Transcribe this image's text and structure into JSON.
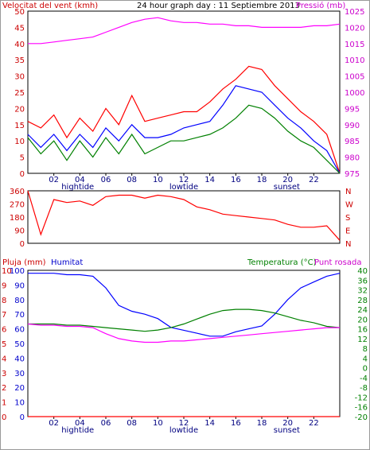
{
  "chart_data": [
    {
      "type": "line",
      "title": "24 hour graph day : 11 Septiembre 2013",
      "ylabel_left": "Velocitat del vent (kmh)",
      "ylabel_right": "Pressió (mb)",
      "x_tick_labels": [
        "02",
        "04",
        "06",
        "08",
        "10",
        "12",
        "14",
        "16",
        "18",
        "20",
        "22"
      ],
      "x_markers": [
        "hightide",
        "lowtide",
        "sunset"
      ],
      "left_ticks": [
        "0",
        "5",
        "10",
        "15",
        "20",
        "25",
        "30",
        "35",
        "40",
        "45",
        "50"
      ],
      "ylim_left": [
        0,
        50
      ],
      "right_ticks": [
        "975",
        "980",
        "985",
        "990",
        "995",
        "1000",
        "1005",
        "1010",
        "1015",
        "1020",
        "1025"
      ],
      "ylim_right": [
        975,
        1025
      ],
      "x": [
        0,
        1,
        2,
        3,
        4,
        5,
        6,
        7,
        8,
        9,
        10,
        11,
        12,
        13,
        14,
        15,
        16,
        17,
        18,
        19,
        20,
        21,
        22,
        23,
        24
      ],
      "series": [
        {
          "color": "#ff0000",
          "values": [
            16,
            14,
            18,
            11,
            17,
            13,
            20,
            15,
            24,
            16,
            17,
            18,
            19,
            19,
            22,
            26,
            29,
            33,
            32,
            27,
            23,
            19,
            16,
            12,
            0
          ]
        },
        {
          "color": "#0000ff",
          "values": [
            12,
            8,
            12,
            7,
            12,
            8,
            14,
            10,
            15,
            11,
            11,
            12,
            14,
            15,
            16,
            21,
            27,
            26,
            25,
            21,
            17,
            14,
            10,
            7,
            0
          ]
        },
        {
          "color": "#008000",
          "values": [
            11,
            6,
            10,
            4,
            10,
            5,
            11,
            6,
            12,
            6,
            8,
            10,
            10,
            11,
            12,
            14,
            17,
            21,
            20,
            17,
            13,
            10,
            8,
            4,
            0
          ]
        },
        {
          "color": "#ff00ff",
          "axis": "right",
          "values": [
            1015,
            1015,
            1015.5,
            1016,
            1016.5,
            1017,
            1018.5,
            1020,
            1021.5,
            1022.5,
            1023,
            1022,
            1021.5,
            1021.5,
            1021,
            1021,
            1020.5,
            1020.5,
            1020,
            1020,
            1020,
            1020,
            1020.5,
            1020.5,
            1021
          ]
        }
      ]
    },
    {
      "type": "line",
      "ylabel_right": "NWSEN",
      "left_ticks": [
        "0",
        "90",
        "180",
        "270",
        "360"
      ],
      "ylim": [
        0,
        360
      ],
      "x": [
        0,
        1,
        2,
        3,
        4,
        5,
        6,
        7,
        8,
        9,
        10,
        11,
        12,
        13,
        14,
        15,
        16,
        17,
        18,
        19,
        20,
        21,
        22,
        23,
        24
      ],
      "series": [
        {
          "color": "#ff0000",
          "values": [
            360,
            60,
            300,
            280,
            290,
            260,
            320,
            330,
            330,
            310,
            330,
            320,
            300,
            250,
            230,
            200,
            190,
            180,
            170,
            160,
            130,
            110,
            110,
            120,
            20
          ]
        }
      ]
    },
    {
      "type": "line",
      "ylabel_left_1": "Pluja (mm)",
      "ylabel_left_2": "Humitat",
      "ylabel_right_1": "Temperatura (°C)",
      "ylabel_right_2": "Punt rosada",
      "pluja_ticks": [
        "0",
        "1",
        "2",
        "3",
        "4",
        "5",
        "6",
        "7",
        "8",
        "9",
        "10"
      ],
      "humitat_ticks": [
        "0",
        "10",
        "20",
        "30",
        "40",
        "50",
        "60",
        "70",
        "80",
        "90",
        "100"
      ],
      "right_ticks": [
        "-20",
        "-16",
        "-12",
        "-8",
        "-4",
        "0",
        "4",
        "8",
        "12",
        "16",
        "20",
        "24",
        "28",
        "32",
        "36",
        "40"
      ],
      "ylim_right": [
        -20,
        40
      ],
      "x_tick_labels": [
        "02",
        "04",
        "06",
        "08",
        "10",
        "12",
        "14",
        "16",
        "18",
        "20",
        "22"
      ],
      "x_markers": [
        "hightide",
        "lowtide",
        "sunset"
      ],
      "x": [
        0,
        1,
        2,
        3,
        4,
        5,
        6,
        7,
        8,
        9,
        10,
        11,
        12,
        13,
        14,
        15,
        16,
        17,
        18,
        19,
        20,
        21,
        22,
        23,
        24
      ],
      "series": [
        {
          "name": "Pluja",
          "color": "#ff0000",
          "axis": "pluja",
          "values": [
            0,
            0,
            0,
            0,
            0,
            0,
            0,
            0,
            0,
            0,
            0,
            0,
            0,
            0,
            0,
            0,
            0,
            0,
            0,
            0,
            0,
            0,
            0,
            0,
            0
          ]
        },
        {
          "name": "Humitat",
          "color": "#0000ff",
          "axis": "humitat",
          "values": [
            98,
            98,
            98,
            97,
            97,
            96,
            88,
            76,
            72,
            70,
            67,
            61,
            59,
            57,
            55,
            55,
            58,
            60,
            62,
            70,
            80,
            88,
            92,
            96,
            98
          ]
        },
        {
          "name": "Temperatura",
          "color": "#008000",
          "axis": "temp",
          "values": [
            18,
            18,
            18,
            17.5,
            17.5,
            17,
            16.5,
            16,
            15.5,
            15,
            15.5,
            16.5,
            18,
            20,
            22,
            23.5,
            24,
            24,
            23.5,
            22.5,
            21,
            19.5,
            18.5,
            17,
            16.5
          ]
        },
        {
          "name": "Punt rosada",
          "color": "#ff00ff",
          "axis": "temp",
          "values": [
            18,
            17.5,
            17.5,
            17,
            17,
            16.5,
            14,
            12,
            11,
            10.5,
            10.5,
            11,
            11,
            11.5,
            12,
            12.5,
            13,
            13.5,
            14,
            14.5,
            15,
            15.5,
            16,
            16.5,
            16.5
          ]
        }
      ]
    }
  ]
}
